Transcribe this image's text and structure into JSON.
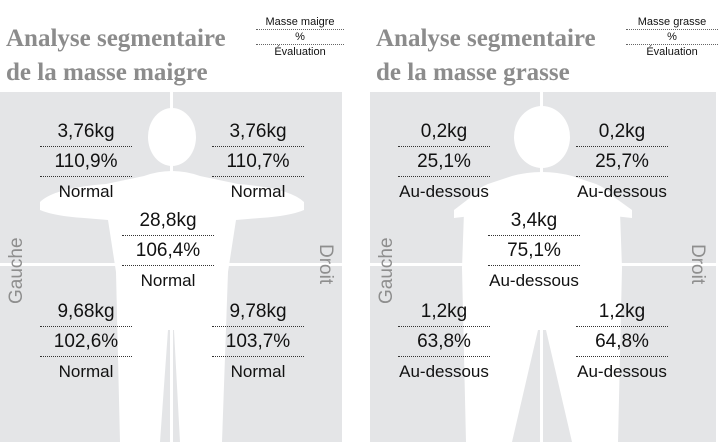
{
  "lean": {
    "title_line1": "Analyse segmentaire",
    "title_line2": "de la masse maigre",
    "legend": [
      "Masse maigre",
      "%",
      "Évaluation"
    ],
    "side_left": "Gauche",
    "side_right": "Droit",
    "segments": {
      "left_arm": {
        "mass": "3,76kg",
        "pct": "110,9%",
        "eval": "Normal"
      },
      "right_arm": {
        "mass": "3,76kg",
        "pct": "110,7%",
        "eval": "Normal"
      },
      "trunk": {
        "mass": "28,8kg",
        "pct": "106,4%",
        "eval": "Normal"
      },
      "left_leg": {
        "mass": "9,68kg",
        "pct": "102,6%",
        "eval": "Normal"
      },
      "right_leg": {
        "mass": "9,78kg",
        "pct": "103,7%",
        "eval": "Normal"
      }
    }
  },
  "fat": {
    "title_line1": "Analyse segmentaire",
    "title_line2": "de la masse grasse",
    "legend": [
      "Masse grasse",
      "%",
      "Évaluation"
    ],
    "side_left": "Gauche",
    "side_right": "Droit",
    "segments": {
      "left_arm": {
        "mass": "0,2kg",
        "pct": "25,1%",
        "eval": "Au-dessous"
      },
      "right_arm": {
        "mass": "0,2kg",
        "pct": "25,7%",
        "eval": "Au-dessous"
      },
      "trunk": {
        "mass": "3,4kg",
        "pct": "75,1%",
        "eval": "Au-dessous"
      },
      "left_leg": {
        "mass": "1,2kg",
        "pct": "63,8%",
        "eval": "Au-dessous"
      },
      "right_leg": {
        "mass": "1,2kg",
        "pct": "64,8%",
        "eval": "Au-dessous"
      }
    }
  },
  "colors": {
    "panel_bg": "#e4e5e7",
    "silhouette": "#ffffff",
    "title": "#8c8c8c"
  }
}
